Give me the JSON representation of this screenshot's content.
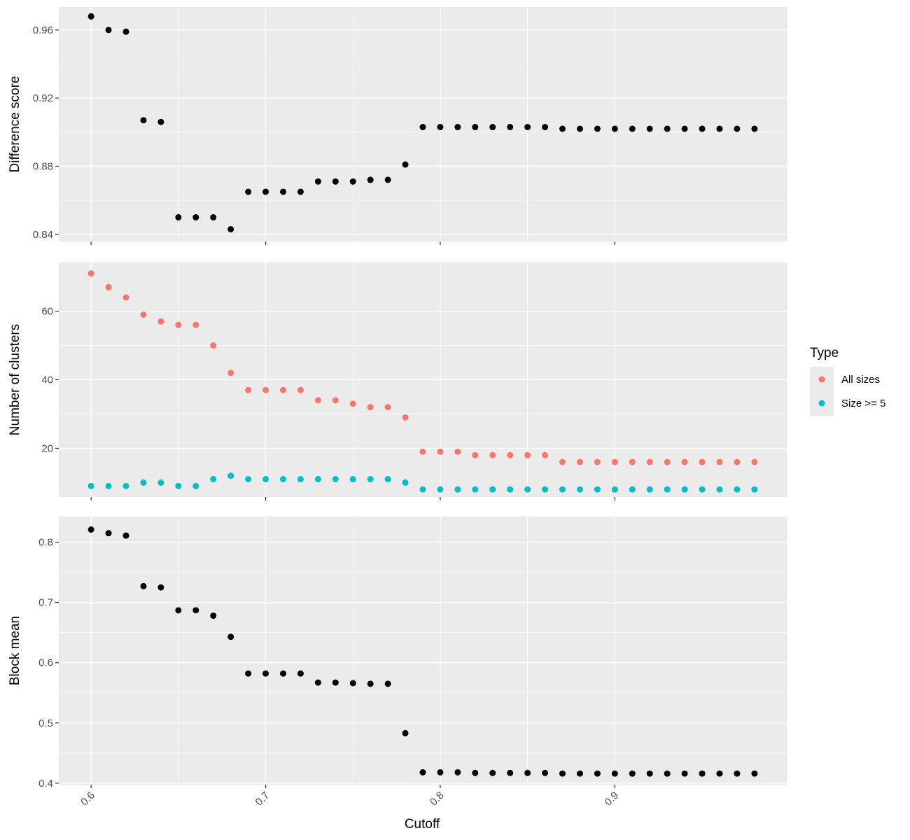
{
  "chart_data": {
    "type": "scatter",
    "xlabel": "Cutoff",
    "x_ticks": [
      "0.6",
      "0.7",
      "0.8",
      "0.9"
    ],
    "xlim": [
      0.5815,
      0.9985
    ],
    "x": [
      0.6,
      0.61,
      0.62,
      0.63,
      0.64,
      0.65,
      0.66,
      0.67,
      0.68,
      0.69,
      0.7,
      0.71,
      0.72,
      0.73,
      0.74,
      0.75,
      0.76,
      0.77,
      0.78,
      0.79,
      0.8,
      0.81,
      0.82,
      0.83,
      0.84,
      0.85,
      0.86,
      0.87,
      0.88,
      0.89,
      0.9,
      0.91,
      0.92,
      0.93,
      0.94,
      0.95,
      0.96,
      0.97,
      0.98
    ],
    "grid": true,
    "legend": {
      "title": "Type",
      "position": "right",
      "entries": [
        {
          "label": "All sizes",
          "color": "#F8766D"
        },
        {
          "label": "Size >= 5",
          "color": "#00BFC4"
        }
      ]
    },
    "panels": [
      {
        "ylabel": "Difference score",
        "ylim": [
          0.8358,
          0.9735
        ],
        "y_ticks": [
          0.84,
          0.88,
          0.92,
          0.96
        ],
        "y_tick_labels": [
          "0.84",
          "0.88",
          "0.92",
          "0.96"
        ],
        "series": [
          {
            "color": "#000000",
            "values": [
              0.968,
              0.96,
              0.959,
              0.907,
              0.906,
              0.85,
              0.85,
              0.85,
              0.843,
              0.865,
              0.865,
              0.865,
              0.865,
              0.871,
              0.871,
              0.871,
              0.872,
              0.872,
              0.881,
              0.903,
              0.903,
              0.903,
              0.903,
              0.903,
              0.903,
              0.903,
              0.903,
              0.902,
              0.902,
              0.902,
              0.902,
              0.902,
              0.902,
              0.902,
              0.902,
              0.902,
              0.902,
              0.902,
              0.902
            ]
          }
        ]
      },
      {
        "ylabel": "Number of clusters",
        "ylim": [
          5.8,
          74.2
        ],
        "y_ticks": [
          20,
          40,
          60
        ],
        "y_tick_labels": [
          "20",
          "40",
          "60"
        ],
        "series": [
          {
            "name": "All sizes",
            "color": "#F8766D",
            "values": [
              71,
              67,
              64,
              59,
              57,
              56,
              56,
              50,
              42,
              37,
              37,
              37,
              37,
              34,
              34,
              33,
              32,
              32,
              29,
              19,
              19,
              19,
              18,
              18,
              18,
              18,
              18,
              16,
              16,
              16,
              16,
              16,
              16,
              16,
              16,
              16,
              16,
              16,
              16
            ]
          },
          {
            "name": "Size >= 5",
            "color": "#00BFC4",
            "values": [
              9,
              9,
              9,
              10,
              10,
              9,
              9,
              11,
              12,
              11,
              11,
              11,
              11,
              11,
              11,
              11,
              11,
              11,
              10,
              8,
              8,
              8,
              8,
              8,
              8,
              8,
              8,
              8,
              8,
              8,
              8,
              8,
              8,
              8,
              8,
              8,
              8,
              8,
              8
            ]
          }
        ]
      },
      {
        "ylabel": "Block mean",
        "ylim": [
          0.3975,
          0.8425
        ],
        "y_ticks": [
          0.4,
          0.5,
          0.6,
          0.7,
          0.8
        ],
        "y_tick_labels": [
          "0.4",
          "0.5",
          "0.6",
          "0.7",
          "0.8"
        ],
        "series": [
          {
            "color": "#000000",
            "values": [
              0.821,
              0.815,
              0.811,
              0.727,
              0.725,
              0.687,
              0.687,
              0.678,
              0.643,
              0.582,
              0.582,
              0.582,
              0.582,
              0.567,
              0.567,
              0.566,
              0.565,
              0.565,
              0.483,
              0.418,
              0.418,
              0.418,
              0.417,
              0.417,
              0.417,
              0.417,
              0.417,
              0.416,
              0.416,
              0.416,
              0.416,
              0.416,
              0.416,
              0.416,
              0.416,
              0.416,
              0.416,
              0.416,
              0.416
            ]
          }
        ]
      }
    ]
  }
}
